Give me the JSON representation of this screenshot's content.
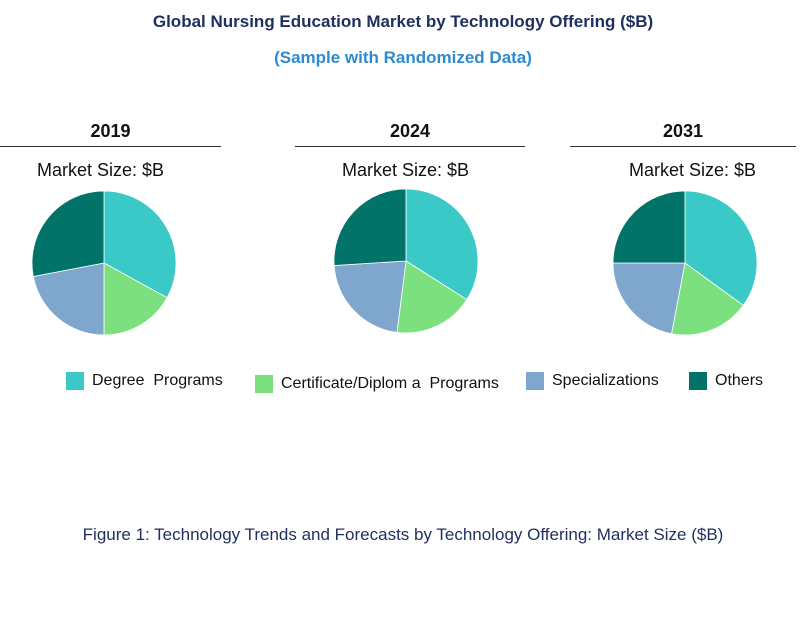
{
  "title": "Global Nursing Education Market by Technology Offering ($B)",
  "subtitle": "(Sample with Randomized Data)",
  "caption": "Figure 1: Technology Trends and Forecasts by Technology Offering: Market Size ($B)",
  "colors": {
    "Degree Programs": "#3ac9c6",
    "Certificate/Diploma Programs": "#7de07f",
    "Specializations": "#7fa6cc",
    "Others": "#027369"
  },
  "legend": [
    {
      "label": "Degree  Programs",
      "color": "#3ac9c6"
    },
    {
      "label": "Certificate/Diplom a  Programs",
      "color": "#7de07f"
    },
    {
      "label": "Specializations",
      "color": "#7fa6cc"
    },
    {
      "label": "Others",
      "color": "#027369"
    }
  ],
  "chart_data": [
    {
      "type": "pie",
      "title": "2019",
      "subtitle": "Market Size: $B",
      "labels": [
        "Degree Programs",
        "Certificate/Diploma Programs",
        "Specializations",
        "Others"
      ],
      "values": [
        33,
        17,
        22,
        28
      ]
    },
    {
      "type": "pie",
      "title": "2024",
      "subtitle": "Market Size: $B",
      "labels": [
        "Degree Programs",
        "Certificate/Diploma Programs",
        "Specializations",
        "Others"
      ],
      "values": [
        34,
        18,
        22,
        26
      ]
    },
    {
      "type": "pie",
      "title": "2031",
      "subtitle": "Market Size: $B",
      "labels": [
        "Degree Programs",
        "Certificate/Diploma Programs",
        "Specializations",
        "Others"
      ],
      "values": [
        35,
        18,
        22,
        25
      ]
    }
  ]
}
